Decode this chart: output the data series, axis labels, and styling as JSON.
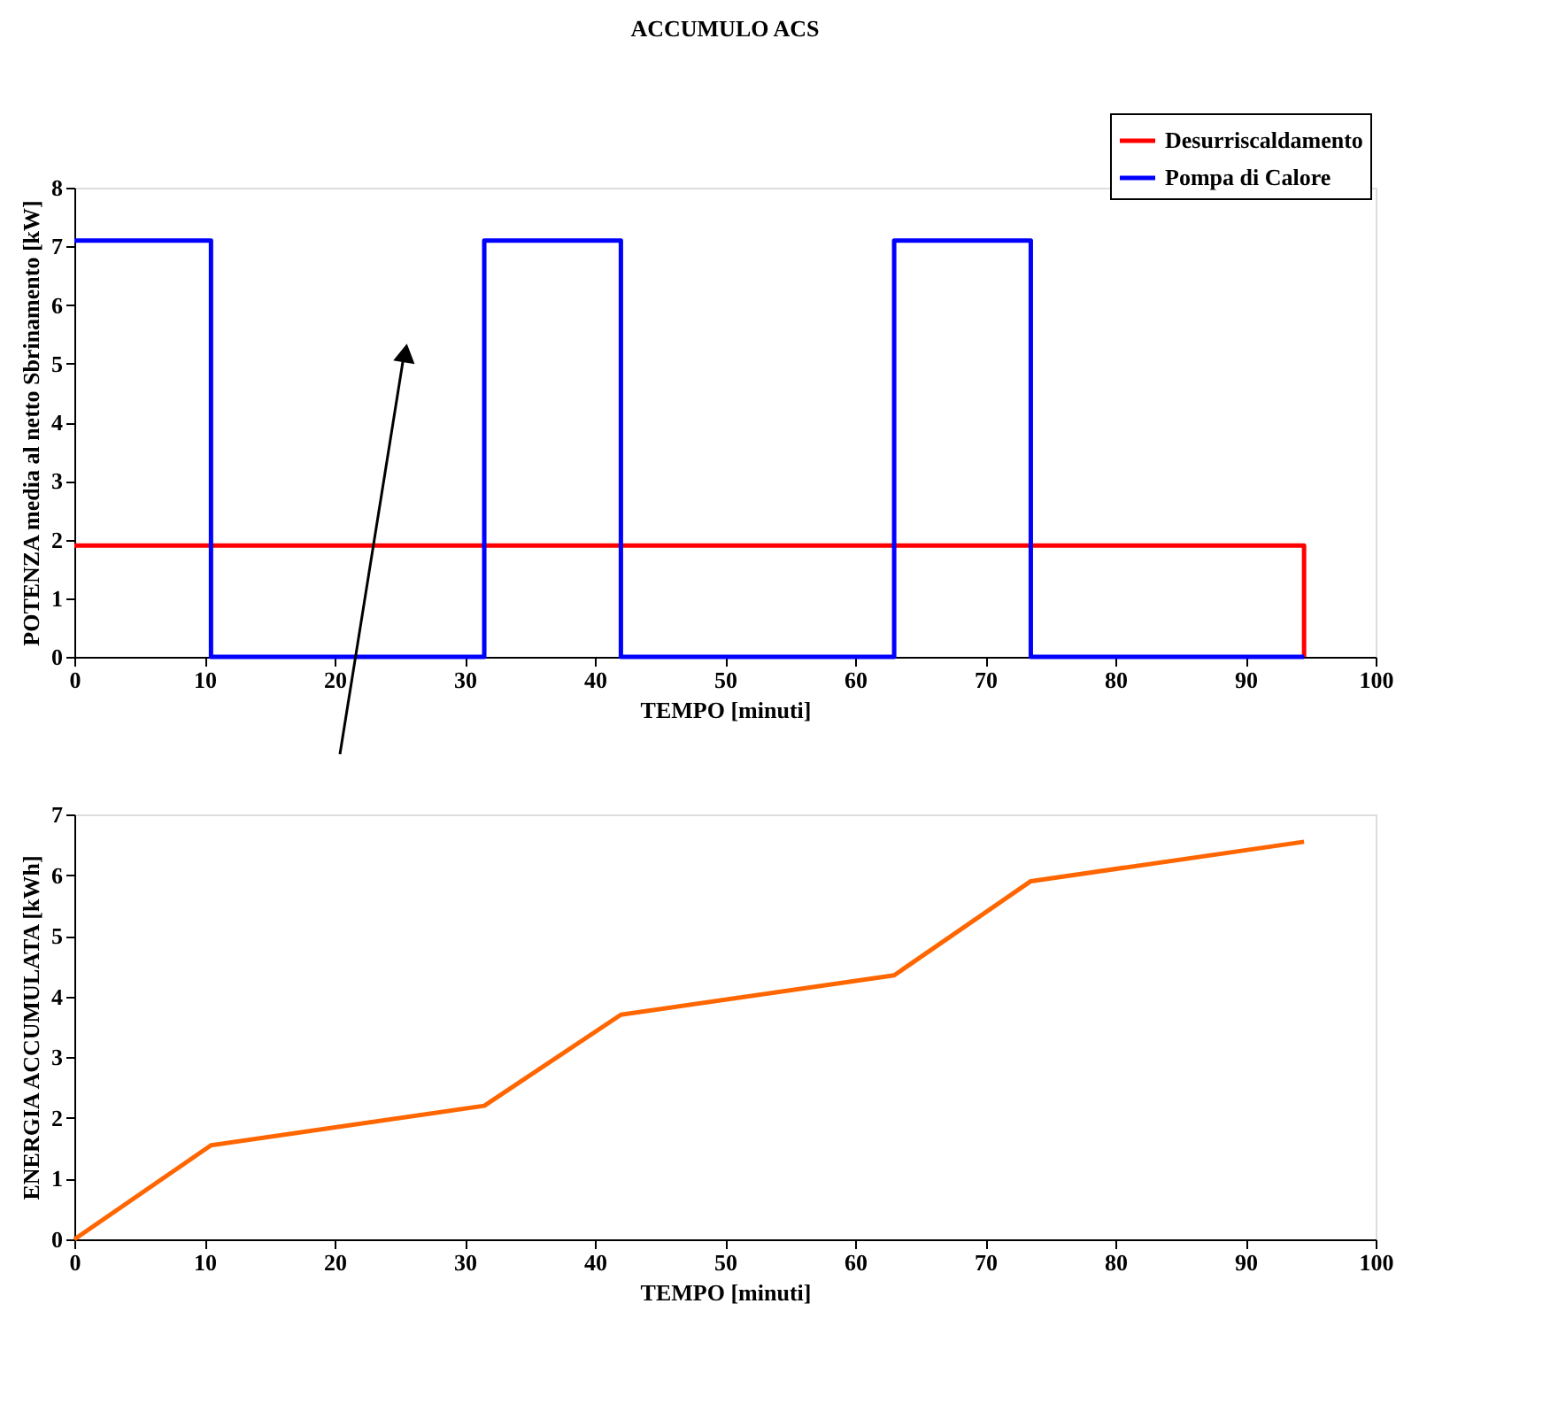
{
  "chart_data": [
    {
      "type": "line",
      "title": "ACCUMULO ACS",
      "xlabel": "TEMPO [minuti]",
      "ylabel": "POTENZA  media al netto Sbrinamento [kW]",
      "xlim": [
        0,
        100
      ],
      "xticks": [
        0,
        10,
        20,
        30,
        40,
        50,
        60,
        70,
        80,
        90,
        100
      ],
      "ylim": [
        0,
        8
      ],
      "yticks": [
        0,
        1,
        2,
        3,
        4,
        5,
        6,
        7,
        8
      ],
      "grid": false,
      "legend": "top right",
      "marker": "none",
      "line_style": "solid",
      "series": [
        {
          "name": "Desurriscaldamento",
          "color": "#ff0000",
          "x": [
            0,
            94.5,
            94.5
          ],
          "values": [
            1.9,
            1.9,
            0
          ]
        },
        {
          "name": "Pompa di Calore",
          "color": "#0000ff",
          "x": [
            0,
            10.5,
            10.5,
            31.5,
            31.5,
            42,
            42,
            63,
            63,
            73.5,
            73.5,
            94.5
          ],
          "values": [
            7.1,
            7.1,
            0,
            0,
            7.1,
            7.1,
            0,
            0,
            7.1,
            7.1,
            0,
            0
          ]
        }
      ]
    },
    {
      "type": "line",
      "xlabel": "TEMPO [minuti]",
      "ylabel": "ENERGIA ACCUMULATA [kWh]",
      "xlim": [
        0,
        100
      ],
      "xticks": [
        0,
        10,
        20,
        30,
        40,
        50,
        60,
        70,
        80,
        90,
        100
      ],
      "ylim": [
        0,
        7
      ],
      "yticks": [
        0,
        1,
        2,
        3,
        4,
        5,
        6,
        7
      ],
      "grid": false,
      "legend": false,
      "marker": "none",
      "line_style": "solid",
      "series": [
        {
          "color": "#ff6600",
          "x": [
            0,
            10.5,
            31.5,
            42,
            63,
            73.5,
            94.5
          ],
          "values": [
            0,
            1.55,
            2.2,
            3.7,
            4.35,
            5.9,
            6.55
          ]
        }
      ]
    }
  ]
}
